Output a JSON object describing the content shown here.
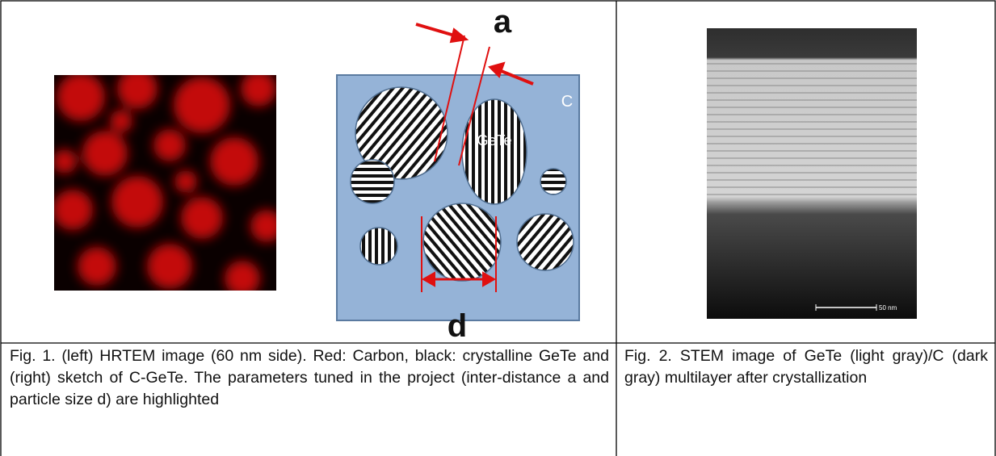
{
  "figure_1": {
    "sketch_labels": {
      "a": "a",
      "carbon": "C",
      "particle": "GeTe",
      "d": "d"
    },
    "caption": "Fig. 1. (left) HRTEM image (60 nm side). Red: Carbon, black: crystalline GeTe and (right) sketch of C-GeTe. The parameters tuned in the project (inter-distance a and particle size d) are highlighted"
  },
  "figure_2": {
    "scale_bar": "50 nm",
    "caption": "Fig. 2. STEM image of GeTe (light gray)/C (dark gray) multilayer after crystallization"
  }
}
